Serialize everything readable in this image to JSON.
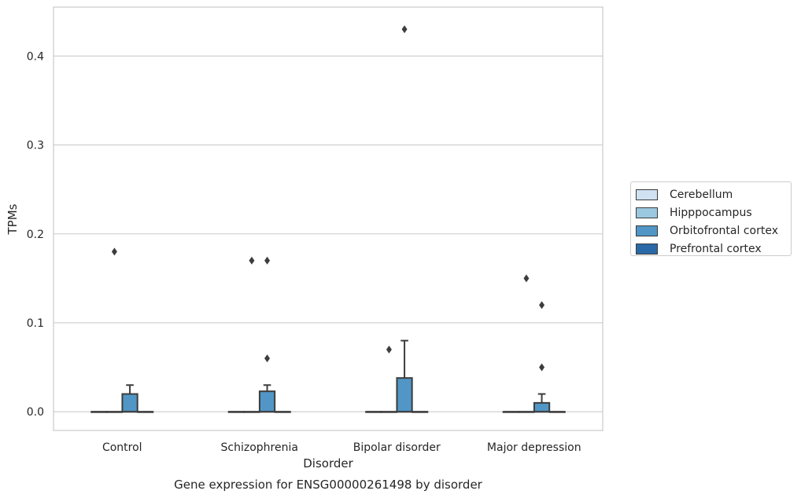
{
  "chart_data": {
    "type": "box",
    "title": "",
    "caption": "Gene expression for ENSG00000261498 by disorder",
    "xlabel": "Disorder",
    "ylabel": "TPMs",
    "ylim": [
      -0.021,
      0.455
    ],
    "yticks": [
      0.0,
      0.1,
      0.2,
      0.3,
      0.4
    ],
    "ytick_labels": [
      "0.0",
      "0.1",
      "0.2",
      "0.3",
      "0.4"
    ],
    "grid": true,
    "legend_position": "right",
    "categories": [
      "Control",
      "Schizophrenia",
      "Bipolar disorder",
      "Major depression"
    ],
    "series": [
      {
        "name": "Cerebellum",
        "color": "#d0e1f2",
        "boxes": [
          {
            "q1": 0,
            "median": 0,
            "q3": 0,
            "whisker_low": 0,
            "whisker_high": 0,
            "outliers": []
          },
          {
            "q1": 0,
            "median": 0,
            "q3": 0,
            "whisker_low": 0,
            "whisker_high": 0,
            "outliers": []
          },
          {
            "q1": 0,
            "median": 0,
            "q3": 0,
            "whisker_low": 0,
            "whisker_high": 0,
            "outliers": []
          },
          {
            "q1": 0,
            "median": 0,
            "q3": 0,
            "whisker_low": 0,
            "whisker_high": 0,
            "outliers": []
          }
        ]
      },
      {
        "name": "Hipppocampus",
        "color": "#9ac8e0",
        "boxes": [
          {
            "q1": 0,
            "median": 0,
            "q3": 0,
            "whisker_low": 0,
            "whisker_high": 0,
            "outliers": [
              0.18
            ]
          },
          {
            "q1": 0,
            "median": 0,
            "q3": 0,
            "whisker_low": 0,
            "whisker_high": 0,
            "outliers": [
              0.17
            ]
          },
          {
            "q1": 0,
            "median": 0,
            "q3": 0,
            "whisker_low": 0,
            "whisker_high": 0,
            "outliers": [
              0.07
            ]
          },
          {
            "q1": 0,
            "median": 0,
            "q3": 0,
            "whisker_low": 0,
            "whisker_high": 0,
            "outliers": [
              0.15
            ]
          }
        ]
      },
      {
        "name": "Orbitofrontal cortex",
        "color": "#5196c6",
        "boxes": [
          {
            "q1": 0,
            "median": 0,
            "q3": 0.02,
            "whisker_low": 0,
            "whisker_high": 0.03,
            "outliers": []
          },
          {
            "q1": 0,
            "median": 0,
            "q3": 0.023,
            "whisker_low": 0,
            "whisker_high": 0.03,
            "outliers": [
              0.06,
              0.17
            ]
          },
          {
            "q1": 0,
            "median": 0,
            "q3": 0.038,
            "whisker_low": 0,
            "whisker_high": 0.08,
            "outliers": [
              0.43
            ]
          },
          {
            "q1": 0,
            "median": 0,
            "q3": 0.01,
            "whisker_low": 0,
            "whisker_high": 0.02,
            "outliers": [
              0.05,
              0.12
            ]
          }
        ]
      },
      {
        "name": "Prefrontal cortex",
        "color": "#2a69a8",
        "boxes": [
          {
            "q1": 0,
            "median": 0,
            "q3": 0,
            "whisker_low": 0,
            "whisker_high": 0,
            "outliers": []
          },
          {
            "q1": 0,
            "median": 0,
            "q3": 0,
            "whisker_low": 0,
            "whisker_high": 0,
            "outliers": []
          },
          {
            "q1": 0,
            "median": 0,
            "q3": 0,
            "whisker_low": 0,
            "whisker_high": 0,
            "outliers": []
          },
          {
            "q1": 0,
            "median": 0,
            "q3": 0,
            "whisker_low": 0,
            "whisker_high": 0,
            "outliers": []
          }
        ]
      }
    ]
  }
}
